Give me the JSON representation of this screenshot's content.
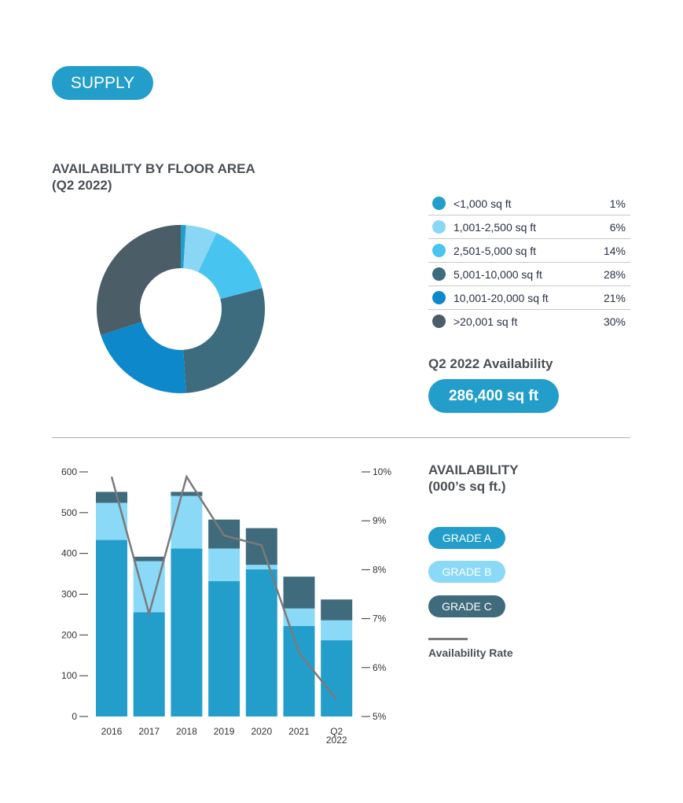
{
  "section_label": "SUPPLY",
  "donut_title": [
    "AVAILABILITY BY FLOOR AREA",
    "(Q2 2022)"
  ],
  "availability_label": "Q2 2022 Availability",
  "availability_value": "286,400 sq ft",
  "bar_title": [
    "AVAILABILITY",
    "(000’s sq ft.)"
  ],
  "legend_rate_label": "Availability Rate",
  "chart_data": [
    {
      "type": "pie",
      "variant": "donut",
      "title": "AVAILABILITY BY FLOOR AREA (Q2 2022)",
      "legend_position": "right",
      "slices": [
        {
          "label": "<1,000 sq ft",
          "value": 1,
          "pct": "1%",
          "color": "#239ecb"
        },
        {
          "label": "1,001-2,500 sq ft",
          "value": 6,
          "pct": "6%",
          "color": "#8ad6f5"
        },
        {
          "label": "2,501-5,000 sq ft",
          "value": 14,
          "pct": "14%",
          "color": "#48c4f0"
        },
        {
          "label": "5,001-10,000 sq ft",
          "value": 28,
          "pct": "28%",
          "color": "#3d6c7e"
        },
        {
          "label": "10,001-20,000 sq ft",
          "value": 21,
          "pct": "21%",
          "color": "#0d89cb"
        },
        {
          "label": ">20,001 sq ft",
          "value": 30,
          "pct": "30%",
          "color": "#4b5d67"
        }
      ]
    },
    {
      "type": "bar",
      "stacked": true,
      "title": "AVAILABILITY (000’s sq ft.)",
      "categories": [
        "2016",
        "2017",
        "2018",
        "2019",
        "2020",
        "2021",
        [
          "Q2",
          "2022"
        ]
      ],
      "ylim": [
        0,
        600
      ],
      "yticks": [
        "0",
        "100",
        "200",
        "300",
        "400",
        "500",
        "600"
      ],
      "y2lim": [
        5,
        10
      ],
      "y2ticks": [
        "5%",
        "6%",
        "7%",
        "8%",
        "9%",
        "10%"
      ],
      "grid": false,
      "legend_position": "right",
      "series": [
        {
          "name": "GRADE A",
          "color": "#239ecb",
          "values": [
            433,
            256,
            412,
            332,
            361,
            222,
            187
          ]
        },
        {
          "name": "GRADE B",
          "color": "#8ad9f7",
          "values": [
            91,
            125,
            129,
            80,
            11,
            43,
            49
          ]
        },
        {
          "name": "GRADE C",
          "color": "#3f6b7d",
          "values": [
            27,
            11,
            10,
            71,
            90,
            78,
            51
          ]
        }
      ],
      "line": {
        "name": "Availability Rate",
        "color": "#7a7a7a",
        "axis": "right",
        "values": [
          9.9,
          7.1,
          9.9,
          8.7,
          8.5,
          6.3,
          5.35
        ]
      }
    }
  ]
}
